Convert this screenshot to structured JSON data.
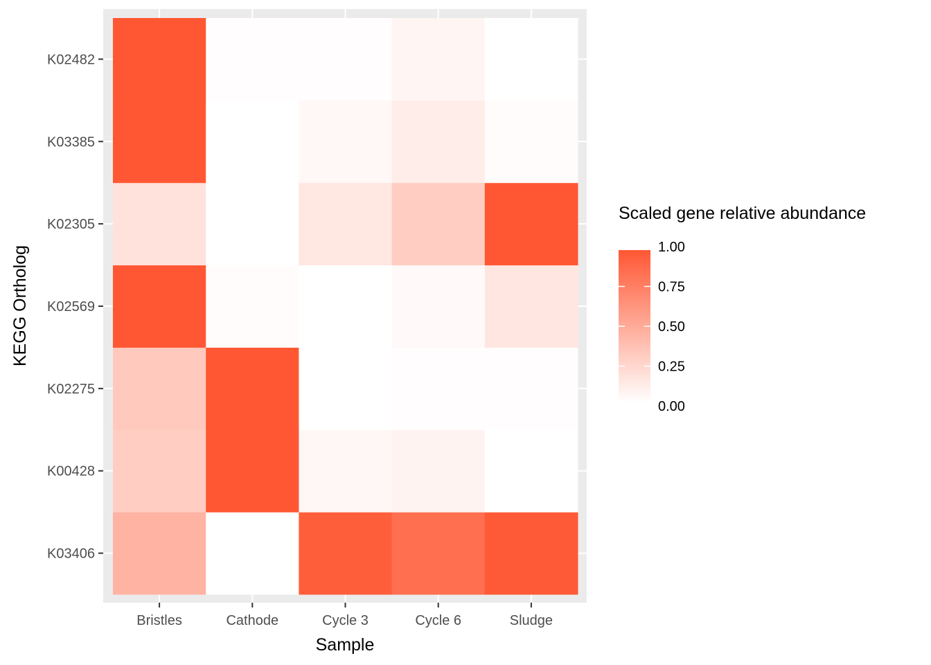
{
  "chart_data": {
    "type": "heatmap",
    "xlabel": "Sample",
    "ylabel": "KEGG Ortholog",
    "x_categories": [
      "Bristles",
      "Cathode",
      "Cycle 3",
      "Cycle 6",
      "Sludge"
    ],
    "y_categories": [
      "K03406",
      "K00428",
      "K02275",
      "K02569",
      "K02305",
      "K03385",
      "K02482"
    ],
    "values": [
      [
        0.45,
        0.0,
        0.96,
        0.86,
        0.98
      ],
      [
        0.3,
        1.0,
        0.05,
        0.07,
        0.0
      ],
      [
        0.32,
        1.0,
        0.0,
        0.01,
        0.01
      ],
      [
        1.0,
        0.02,
        0.0,
        0.03,
        0.15
      ],
      [
        0.17,
        0.0,
        0.14,
        0.3,
        1.0
      ],
      [
        1.0,
        0.0,
        0.04,
        0.11,
        0.02
      ],
      [
        1.0,
        0.01,
        0.01,
        0.06,
        0.0
      ]
    ],
    "color_scale": {
      "low": "#ffffff",
      "high": "#ff5733",
      "min": 0,
      "max": 1
    },
    "legend": {
      "title": "Scaled gene relative abundance",
      "breaks": [
        "1.00",
        "0.75",
        "0.50",
        "0.25",
        "0.00"
      ],
      "placement": "right"
    },
    "panel_background": "#ebebeb",
    "grid": true
  }
}
